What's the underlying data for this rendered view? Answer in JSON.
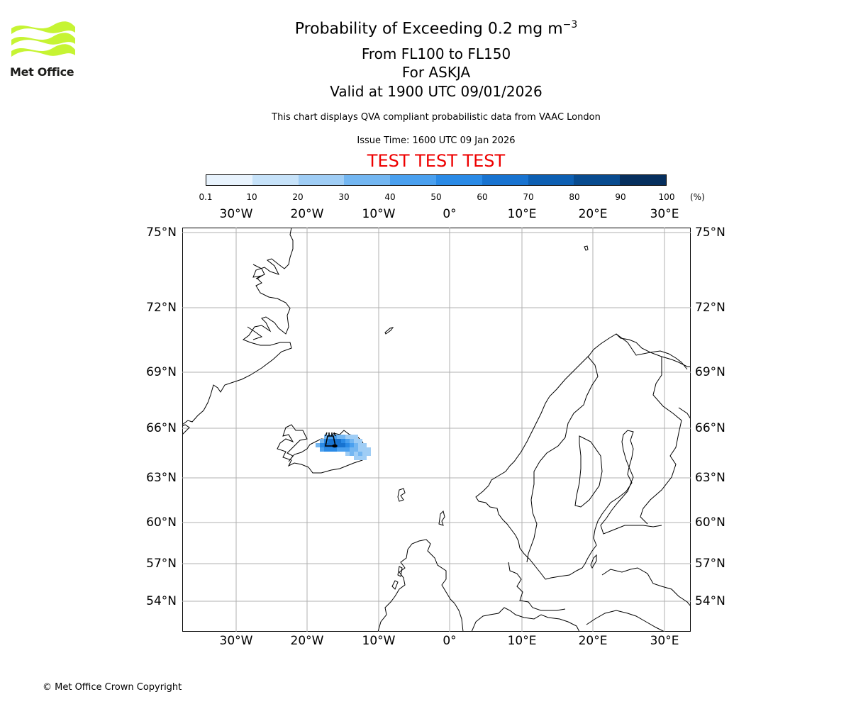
{
  "logo": {
    "text": "Met Office",
    "color": "#c6f433"
  },
  "header": {
    "title_main": "Probability of Exceeding 0.2 mg m",
    "title_superscript": "−3",
    "level_range": "From FL100 to FL150",
    "volcano": "For ASKJA",
    "valid_time": "Valid at 1900 UTC 09/01/2026",
    "description": "This chart displays QVA compliant probabilistic data from VAAC London",
    "issue_time": "Issue Time: 1600 UTC 09 Jan 2026",
    "test_banner": "TEST TEST TEST",
    "test_banner_color": "#ee0000"
  },
  "colorbar": {
    "ticks": [
      "0.1",
      "10",
      "20",
      "30",
      "40",
      "50",
      "60",
      "70",
      "80",
      "90",
      "100"
    ],
    "unit": "(%)",
    "colors": [
      "#e8f3fd",
      "#c6e2f9",
      "#9fcdf5",
      "#73b6f1",
      "#4aa0ef",
      "#2a8ae6",
      "#1873d0",
      "#0d5fb2",
      "#084b8f",
      "#062f5e"
    ]
  },
  "map": {
    "lon_labels": [
      "30°W",
      "20°W",
      "10°W",
      "0°",
      "10°E",
      "20°E",
      "30°E"
    ],
    "lat_labels": [
      "75°N",
      "72°N",
      "69°N",
      "66°N",
      "63°N",
      "60°N",
      "57°N",
      "54°N"
    ],
    "volcano_icon": "volcano-icon",
    "plume_colors": [
      "#1873d0",
      "#2a8ae6",
      "#4aa0ef",
      "#73b6f1",
      "#9fcdf5"
    ]
  },
  "footer": {
    "copyright": "© Met Office Crown Copyright"
  }
}
